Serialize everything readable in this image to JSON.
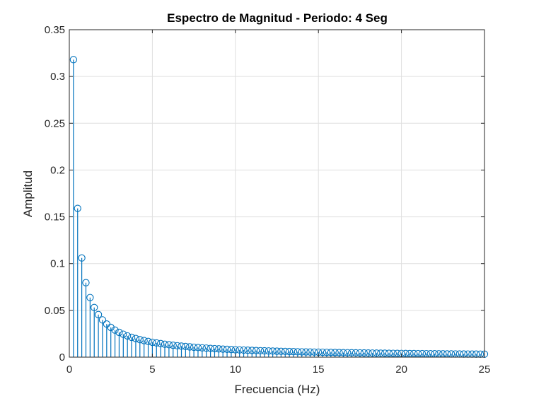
{
  "chart_data": {
    "type": "stem",
    "title": "Espectro de Magnitud - Periodo: 4 Seg",
    "xlabel": "Frecuencia (Hz)",
    "ylabel": "Amplitud",
    "xlim": [
      0,
      25
    ],
    "ylim": [
      0,
      0.35
    ],
    "xticks": [
      0,
      5,
      10,
      15,
      20,
      25
    ],
    "xtick_labels": [
      "0",
      "5",
      "10",
      "15",
      "20",
      "25"
    ],
    "yticks": [
      0,
      0.05,
      0.1,
      0.15,
      0.2,
      0.25,
      0.3,
      0.35
    ],
    "ytick_labels": [
      "0",
      "0.05",
      "0.1",
      "0.15",
      "0.2",
      "0.25",
      "0.3",
      "0.35"
    ],
    "grid": true,
    "color": "#0072BD",
    "series": [
      {
        "x_start": 0.25,
        "x_step": 0.25,
        "values": [
          0.318,
          0.159,
          0.106,
          0.0796,
          0.0637,
          0.0531,
          0.0455,
          0.0398,
          0.0354,
          0.0318,
          0.0289,
          0.0265,
          0.0245,
          0.0227,
          0.0212,
          0.0199,
          0.0187,
          0.0177,
          0.0168,
          0.0159,
          0.0152,
          0.0145,
          0.0138,
          0.0133,
          0.0127,
          0.0122,
          0.0118,
          0.0114,
          0.011,
          0.0106,
          0.0103,
          0.00995,
          0.00965,
          0.00936,
          0.00909,
          0.00884,
          0.0086,
          0.00838,
          0.00816,
          0.00796,
          0.00776,
          0.00758,
          0.0074,
          0.00723,
          0.00707,
          0.00692,
          0.00677,
          0.00663,
          0.0065,
          0.00637,
          0.00624,
          0.00612,
          0.00601,
          0.0059,
          0.00579,
          0.00568,
          0.00558,
          0.00549,
          0.0054,
          0.00531,
          0.00522,
          0.00513,
          0.00505,
          0.00497,
          0.0049,
          0.00482,
          0.00475,
          0.00468,
          0.00461,
          0.00455,
          0.00448,
          0.00442,
          0.00436,
          0.0043,
          0.00424,
          0.00419,
          0.00413,
          0.00408,
          0.00403,
          0.00398,
          0.00393,
          0.00388,
          0.00384,
          0.00379,
          0.00375,
          0.0037,
          0.00366,
          0.00362,
          0.00358,
          0.00354,
          0.0035,
          0.00346,
          0.00342,
          0.00339,
          0.00335,
          0.00332,
          0.00328,
          0.00325,
          0.00322,
          0.00318
        ]
      }
    ]
  }
}
